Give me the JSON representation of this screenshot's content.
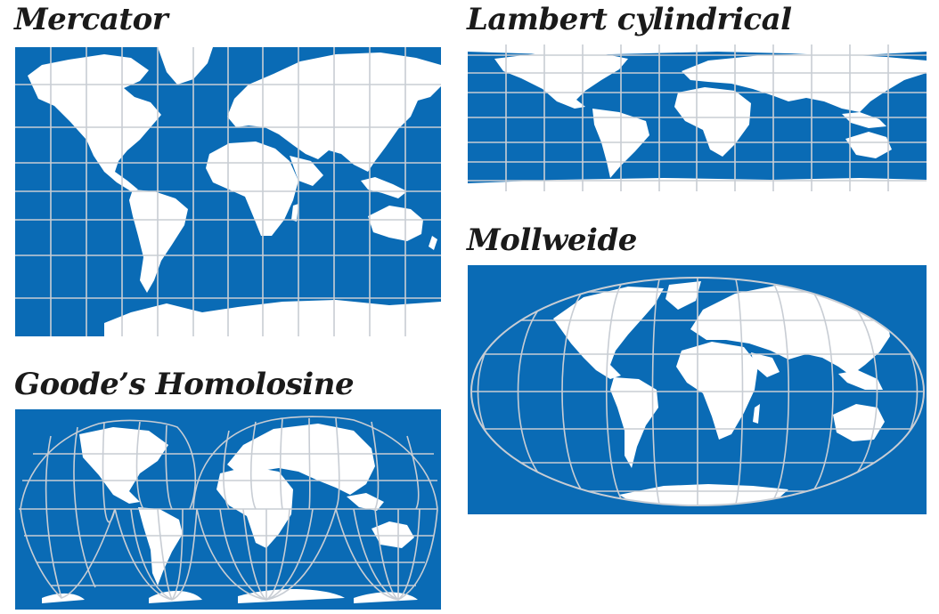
{
  "colors": {
    "ocean": "#0a6bb5",
    "land": "#ffffff",
    "graticule": "#c8cdd4",
    "title": "#1a1a1a"
  },
  "maps": {
    "mercator": {
      "title": "Mercator"
    },
    "lambert": {
      "title": "Lambert cylindrical"
    },
    "goode": {
      "title": "Goode’s Homolosine"
    },
    "mollweide": {
      "title": "Mollweide"
    }
  }
}
